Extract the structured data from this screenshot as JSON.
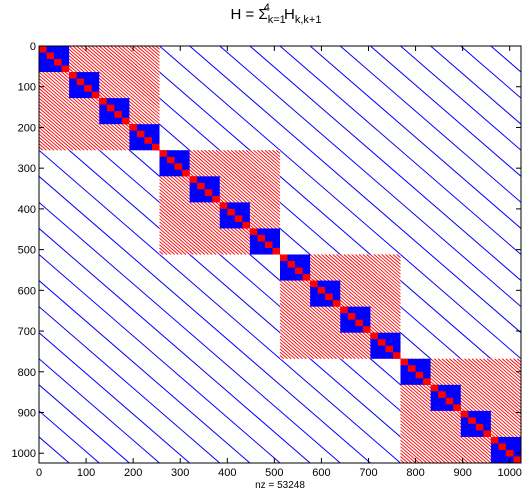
{
  "chart_data": {
    "type": "heatmap",
    "title": {
      "main": "H = Σ",
      "sub1": "k=1",
      "sup1": "4",
      "mid": " H",
      "sub2": "k,k+1"
    },
    "xlabel": "nz = 53248",
    "n": 1024,
    "xlim": [
      0,
      1024
    ],
    "ylim": [
      0,
      1024
    ],
    "y_reversed": true,
    "xticks": [
      0,
      100,
      200,
      300,
      400,
      500,
      600,
      700,
      800,
      900,
      1000
    ],
    "yticks": [
      0,
      100,
      200,
      300,
      400,
      500,
      600,
      700,
      800,
      900,
      1000
    ],
    "tick_labels": [
      "0",
      "100",
      "200",
      "300",
      "400",
      "500",
      "600",
      "700",
      "800",
      "900",
      "1000"
    ],
    "colors": {
      "blue": "#0000ff",
      "red": "#ff0000",
      "axis": "#000000",
      "background": "#ffffff"
    },
    "blocks": {
      "large_red_hatched": {
        "size": 256,
        "starts": [
          0,
          256,
          512,
          768
        ],
        "color": "red"
      },
      "blue_dense": {
        "size": 64,
        "starts": [
          0,
          64,
          128,
          192,
          256,
          320,
          384,
          448,
          512,
          576,
          640,
          704,
          768,
          832,
          896,
          960
        ],
        "color": "blue"
      },
      "red_dense": {
        "size": 16,
        "color": "red"
      }
    },
    "blue_diagonal_line_spacing": 64
  }
}
